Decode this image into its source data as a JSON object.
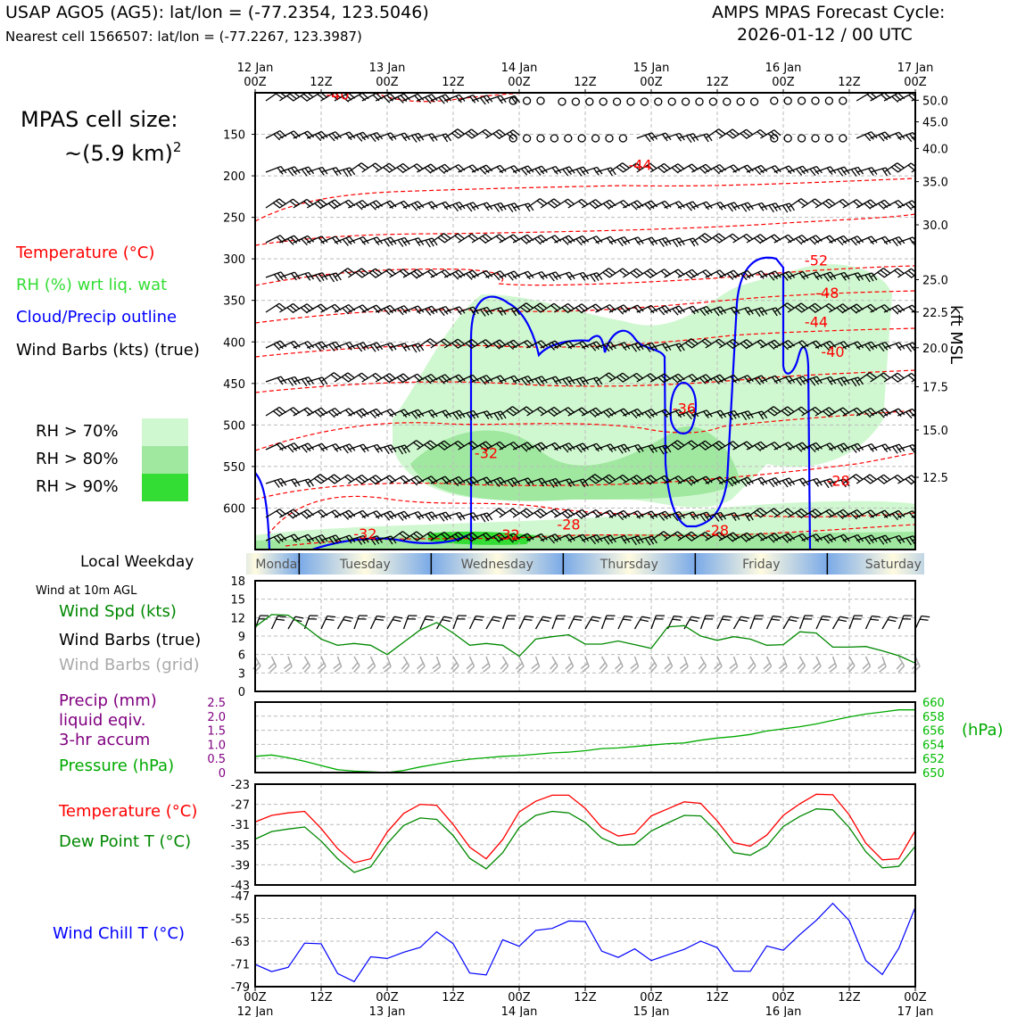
{
  "header": {
    "station_line": "USAP AGO5 (AG5): lat/lon = (-77.2354, 123.5046)",
    "cell_line": "Nearest cell 1566507: lat/lon = (-77.2267, 123.3987)",
    "cycle_title": "AMPS MPAS Forecast Cycle:",
    "cycle_time": "2026-01-12 / 00 UTC"
  },
  "left_labels": {
    "cell_size_title": "MPAS cell size:",
    "cell_size_value": "~(5.9 km)",
    "cell_size_exp": "2",
    "temperature": "Temperature (°C)",
    "rh": "RH (%) wrt liq. wat",
    "cloud": "Cloud/Precip outline",
    "wind_barbs": "Wind Barbs (kts) (true)",
    "rh70": "RH > 70%",
    "rh80": "RH > 80%",
    "rh90": "RH > 90%",
    "local_weekday": "Local Weekday",
    "wind10m": "Wind at 10m AGL",
    "wind_spd": "Wind Spd (kts)",
    "wind_barbs_true": "Wind Barbs (true)",
    "wind_barbs_grid": "Wind Barbs (grid)",
    "precip1": "Precip (mm)",
    "precip2": "liquid eqiv.",
    "precip3": "3-hr accum",
    "pressure": "Pressure (hPa)",
    "pressure_unit": "(hPa)",
    "temp2": "Temperature (°C)",
    "dewpoint": "Dew Point T (°C)",
    "windchill": "Wind Chill T (°C)",
    "kft": "kft MSL"
  },
  "colors": {
    "rh70": "#d0f8d0",
    "rh80": "#a0e8a0",
    "rh90": "#33dd33",
    "temp": "#ff0000",
    "green": "#008800",
    "lime": "#33cc33",
    "blue": "#0000ff",
    "purple": "#800080",
    "gray": "#aaaaaa"
  },
  "time_axis": {
    "top_ticks": [
      {
        "h": 0,
        "l1": "12 Jan",
        "l2": "00Z"
      },
      {
        "h": 12,
        "l1": "",
        "l2": "12Z"
      },
      {
        "h": 24,
        "l1": "13 Jan",
        "l2": "00Z"
      },
      {
        "h": 36,
        "l1": "",
        "l2": "12Z"
      },
      {
        "h": 48,
        "l1": "14 Jan",
        "l2": "00Z"
      },
      {
        "h": 60,
        "l1": "",
        "l2": "12Z"
      },
      {
        "h": 72,
        "l1": "15 Jan",
        "l2": "00Z"
      },
      {
        "h": 84,
        "l1": "",
        "l2": "12Z"
      },
      {
        "h": 96,
        "l1": "16 Jan",
        "l2": "00Z"
      },
      {
        "h": 108,
        "l1": "",
        "l2": "12Z"
      },
      {
        "h": 120,
        "l1": "17 Jan",
        "l2": "00Z"
      }
    ],
    "bottom_ticks": [
      {
        "h": 0,
        "l1": "00Z",
        "l2": "12 Jan"
      },
      {
        "h": 12,
        "l1": "12Z",
        "l2": ""
      },
      {
        "h": 24,
        "l1": "00Z",
        "l2": "13 Jan"
      },
      {
        "h": 36,
        "l1": "12Z",
        "l2": ""
      },
      {
        "h": 48,
        "l1": "00Z",
        "l2": "14 Jan"
      },
      {
        "h": 60,
        "l1": "12Z",
        "l2": ""
      },
      {
        "h": 72,
        "l1": "00Z",
        "l2": "15 Jan"
      },
      {
        "h": 84,
        "l1": "12Z",
        "l2": ""
      },
      {
        "h": 96,
        "l1": "00Z",
        "l2": "16 Jan"
      },
      {
        "h": 108,
        "l1": "12Z",
        "l2": ""
      },
      {
        "h": 120,
        "l1": "00Z",
        "l2": "17 Jan"
      }
    ]
  },
  "weekdays": [
    {
      "name": "Monday",
      "start": -8,
      "end": 8
    },
    {
      "name": "Tuesday",
      "start": 8,
      "end": 32
    },
    {
      "name": "Wednesday",
      "start": 32,
      "end": 56
    },
    {
      "name": "Thursday",
      "start": 56,
      "end": 80
    },
    {
      "name": "Friday",
      "start": 80,
      "end": 104
    },
    {
      "name": "Saturday",
      "start": 104,
      "end": 128
    }
  ],
  "chart_data": [
    {
      "type": "heatmap",
      "name": "cross-section",
      "x_range_hours": [
        0,
        120
      ],
      "pressure_ticks": [
        150,
        200,
        250,
        300,
        350,
        400,
        450,
        500,
        550,
        600
      ],
      "height_ticks_kft": [
        "50.0",
        "45.0",
        "40.0",
        "35.0",
        "30.0",
        "25.0",
        "22.5",
        "20.0",
        "17.5",
        "15.0",
        "12.5"
      ],
      "height_tick_pressures": [
        109,
        135,
        167,
        207,
        259,
        325,
        364,
        407,
        454,
        506,
        563
      ],
      "pressure_range": [
        100,
        650
      ],
      "temperature_labels": [
        {
          "text": "-40",
          "h": 15,
          "p": 108
        },
        {
          "text": "-44",
          "h": 70,
          "p": 193
        },
        {
          "text": "-52",
          "h": 102,
          "p": 308
        },
        {
          "text": "-48",
          "h": 104,
          "p": 347
        },
        {
          "text": "-44",
          "h": 102,
          "p": 382
        },
        {
          "text": "-40",
          "h": 105,
          "p": 418
        },
        {
          "text": "-36",
          "h": 78,
          "p": 486
        },
        {
          "text": "-32",
          "h": 42,
          "p": 540
        },
        {
          "text": "-28",
          "h": 106,
          "p": 573
        },
        {
          "text": "-28",
          "h": 57,
          "p": 626
        },
        {
          "text": "-28",
          "h": 84,
          "p": 633
        },
        {
          "text": "-32",
          "h": 46,
          "p": 638
        },
        {
          "text": "-32",
          "h": 20,
          "p": 637
        }
      ]
    },
    {
      "type": "line",
      "name": "wind10m",
      "x_hours": [
        0,
        3,
        6,
        9,
        12,
        15,
        18,
        21,
        24,
        27,
        30,
        33,
        36,
        39,
        42,
        45,
        48,
        51,
        54,
        57,
        60,
        63,
        66,
        69,
        72,
        75,
        78,
        81,
        84,
        87,
        90,
        93,
        96,
        99,
        102,
        105,
        108,
        111,
        114,
        117,
        120
      ],
      "series": [
        {
          "name": "Wind Spd (kts)",
          "values": [
            10.5,
            12.5,
            12.4,
            10.6,
            8.5,
            7.5,
            7.8,
            7.5,
            6.0,
            8.0,
            10.0,
            11.2,
            9.5,
            7.5,
            7.8,
            7.5,
            5.7,
            8.5,
            8.9,
            9.2,
            7.7,
            7.7,
            8.2,
            7.6,
            7.0,
            10.5,
            10.7,
            9.0,
            8.3,
            8.9,
            8.5,
            7.5,
            7.6,
            9.7,
            9.5,
            7.2,
            7.2,
            7.3,
            6.6,
            5.8,
            4.6
          ]
        }
      ],
      "ylim": [
        0,
        18
      ],
      "yticks": [
        0,
        3,
        6,
        9,
        12,
        15,
        18
      ]
    },
    {
      "type": "line",
      "name": "precip-pressure",
      "x_hours": [
        0,
        3,
        6,
        9,
        12,
        15,
        18,
        21,
        24,
        27,
        30,
        33,
        36,
        39,
        42,
        45,
        48,
        51,
        54,
        57,
        60,
        63,
        66,
        69,
        72,
        75,
        78,
        81,
        84,
        87,
        90,
        93,
        96,
        99,
        102,
        105,
        108,
        111,
        114,
        117,
        120
      ],
      "series": [
        {
          "name": "Pressure (hPa)",
          "values": [
            652.3,
            652.5,
            652.1,
            651.6,
            651.0,
            650.4,
            650.2,
            650.1,
            650.0,
            650.3,
            650.8,
            651.2,
            651.6,
            651.9,
            652.1,
            652.3,
            652.4,
            652.6,
            652.8,
            652.9,
            653.1,
            653.4,
            653.5,
            653.7,
            653.9,
            654.1,
            654.2,
            654.6,
            654.9,
            655.1,
            655.4,
            655.9,
            656.2,
            656.5,
            656.9,
            657.4,
            657.9,
            658.3,
            658.6,
            658.9,
            658.9
          ]
        }
      ],
      "precip_mm": [
        0,
        0,
        0,
        0,
        0,
        0,
        0,
        0,
        0,
        0,
        0,
        0,
        0,
        0,
        0,
        0,
        0,
        0,
        0,
        0,
        0,
        0,
        0,
        0,
        0,
        0,
        0,
        0,
        0,
        0,
        0,
        0,
        0,
        0,
        0,
        0,
        0,
        0,
        0,
        0,
        0
      ],
      "precip_yticks": [
        "0",
        "0.5",
        "1.0",
        "1.5",
        "2.0",
        "2.5"
      ],
      "pressure_yticks": [
        "650",
        "652",
        "654",
        "656",
        "658",
        "660"
      ],
      "precip_ylim": [
        0,
        2.5
      ],
      "pressure_ylim": [
        650,
        660
      ]
    },
    {
      "type": "line",
      "name": "temperature-dewpoint",
      "x_hours": [
        0,
        3,
        6,
        9,
        12,
        15,
        18,
        21,
        24,
        27,
        30,
        33,
        36,
        39,
        42,
        45,
        48,
        51,
        54,
        57,
        60,
        63,
        66,
        69,
        72,
        75,
        78,
        81,
        84,
        87,
        90,
        93,
        96,
        99,
        102,
        105,
        108,
        111,
        114,
        117,
        120
      ],
      "series": [
        {
          "name": "Temperature (°C)",
          "values": [
            -30.5,
            -29.2,
            -28.7,
            -28.4,
            -31.8,
            -35.8,
            -38.6,
            -37.8,
            -32.5,
            -28.8,
            -27.0,
            -27.2,
            -31.0,
            -35.5,
            -37.8,
            -34.0,
            -28.5,
            -26.4,
            -25.2,
            -25.2,
            -27.8,
            -31.6,
            -33.3,
            -32.8,
            -29.3,
            -27.9,
            -26.5,
            -26.8,
            -30.3,
            -34.6,
            -35.3,
            -33.1,
            -29.2,
            -26.9,
            -25.0,
            -25.1,
            -29.1,
            -34.7,
            -38.0,
            -37.8,
            -32.2
          ]
        },
        {
          "name": "Dew Point T (°C)",
          "values": [
            -33.9,
            -32.4,
            -31.9,
            -31.5,
            -34.3,
            -37.8,
            -40.5,
            -39.4,
            -34.8,
            -31.2,
            -29.7,
            -30.0,
            -33.2,
            -37.7,
            -39.8,
            -36.6,
            -31.6,
            -29.2,
            -28.4,
            -28.7,
            -30.6,
            -33.7,
            -35.1,
            -35.0,
            -32.3,
            -30.7,
            -29.2,
            -29.3,
            -32.6,
            -36.6,
            -37.1,
            -35.3,
            -31.4,
            -29.4,
            -27.9,
            -28.1,
            -31.6,
            -36.4,
            -39.6,
            -39.3,
            -35.3
          ]
        }
      ],
      "ylim": [
        -43,
        -23
      ],
      "yticks": [
        -23,
        -27,
        -31,
        -35,
        -39,
        -43
      ]
    },
    {
      "type": "line",
      "name": "wind-chill",
      "x_hours": [
        0,
        3,
        6,
        9,
        12,
        15,
        18,
        21,
        24,
        27,
        30,
        33,
        36,
        39,
        42,
        45,
        48,
        51,
        54,
        57,
        60,
        63,
        66,
        69,
        72,
        75,
        78,
        81,
        84,
        87,
        90,
        93,
        96,
        99,
        102,
        105,
        108,
        111,
        114,
        117,
        120
      ],
      "series": [
        {
          "name": "Wind Chill T (°C)",
          "values": [
            -71.2,
            -73.7,
            -72.2,
            -63.7,
            -63.9,
            -74.4,
            -77.2,
            -68.5,
            -69.1,
            -66.9,
            -65.2,
            -59.7,
            -63.9,
            -74.2,
            -74.9,
            -62.5,
            -64.8,
            -59.2,
            -58.5,
            -55.9,
            -56.1,
            -66.5,
            -68.7,
            -65.7,
            -69.8,
            -67.8,
            -65.9,
            -63.0,
            -65.3,
            -73.5,
            -73.6,
            -64.7,
            -66.2,
            -60.7,
            -55.7,
            -49.7,
            -55.8,
            -69.8,
            -74.7,
            -65.5,
            -51.0
          ]
        }
      ],
      "ylim": [
        -79,
        -47
      ],
      "yticks": [
        -47,
        -55,
        -63,
        -71,
        -79
      ]
    }
  ]
}
